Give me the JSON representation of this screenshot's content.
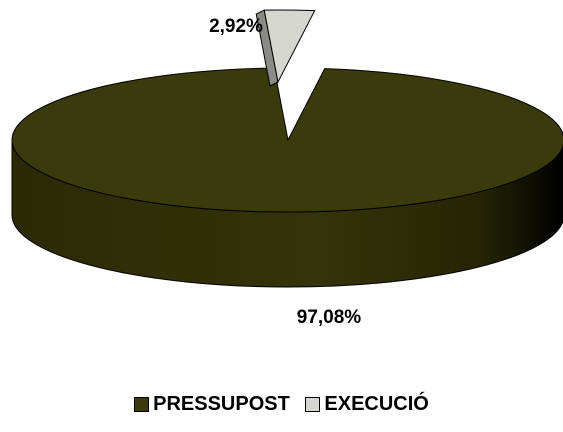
{
  "chart_data": {
    "type": "pie",
    "style": "3d-exploded",
    "title": "",
    "categories": [
      "PRESSUPOST",
      "EXECUCIÓ"
    ],
    "values": [
      97.08,
      2.92
    ],
    "data_labels": [
      "97,08%",
      "2,92%"
    ],
    "legend": {
      "placement": "bottom",
      "entries": [
        "PRESSUPOST",
        "EXECUCIÓ"
      ]
    },
    "colors": {
      "PRESSUPOST": "#3a3a0a",
      "EXECUCIÓ": "#d6d6d0"
    }
  }
}
